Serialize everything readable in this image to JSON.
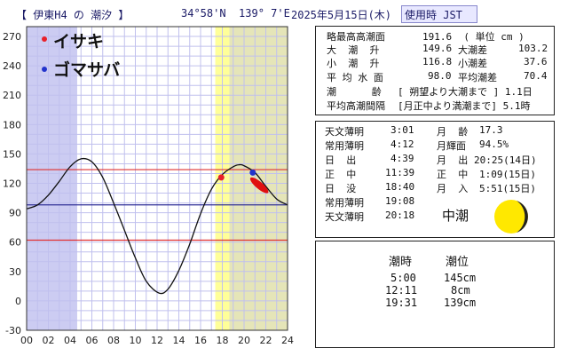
{
  "header": {
    "station": "【 伊東H4 の 潮汐 】",
    "coords": "34°58'N  139° 7'E",
    "date": "2025年5月15日(木)",
    "timezone": "使用時 JST"
  },
  "legend": [
    {
      "label": "イサキ",
      "color": "#e8202a"
    },
    {
      "label": "ゴマサバ",
      "color": "#2233cc"
    }
  ],
  "info": [
    {
      "label": "略最高高潮面",
      "value": "191.6  ( 単位 cm )"
    },
    {
      "label": "大  潮  升",
      "value": "149.6",
      "label2": "大潮差",
      "value2": "103.2"
    },
    {
      "label": "小  潮  升",
      "value": "116.8",
      "label2": "小潮差",
      "value2": "37.6"
    },
    {
      "label": "平 均 水 面",
      "value": "98.0",
      "label2": "平均潮差",
      "value2": "70.4"
    },
    {
      "label": "潮      齢",
      "value": "[ 朔望より大潮まで ] 1.1日"
    },
    {
      "label": "平均高潮間隔",
      "value": "[月正中より満潮まで] 5.1時"
    }
  ],
  "astro": {
    "left": [
      {
        "label": "天文薄明",
        "value": "3:01"
      },
      {
        "label": "常用薄明",
        "value": "4:12"
      },
      {
        "label": "日  出",
        "value": "4:39"
      },
      {
        "label": "正  中",
        "value": "11:39"
      },
      {
        "label": "日  没",
        "value": "18:40"
      },
      {
        "label": "常用薄明",
        "value": "19:08"
      },
      {
        "label": "天文薄明",
        "value": "20:18"
      }
    ],
    "right": [
      {
        "label": "月  齢",
        "value": "17.3"
      },
      {
        "label": "月輝面",
        "value": "94.5%"
      },
      {
        "label": "月  出",
        "value": "20:25(14日)"
      },
      {
        "label": "正  中",
        "value": "1:09(15日)"
      },
      {
        "label": "月  入",
        "value": "5:51(15日)"
      }
    ],
    "tide_type": "中潮"
  },
  "tide_table": {
    "headers": [
      "潮時",
      "潮位"
    ],
    "rows": [
      {
        "time": "5:00",
        "level": "145cm"
      },
      {
        "time": "12:11",
        "level": "8cm"
      },
      {
        "time": "19:31",
        "level": "139cm"
      }
    ]
  },
  "chart_data": {
    "type": "line",
    "xlabel": "",
    "ylabel": "",
    "xlim": [
      0,
      24
    ],
    "ylim": [
      -30,
      280
    ],
    "x_ticks": [
      "00",
      "02",
      "04",
      "06",
      "08",
      "10",
      "12",
      "14",
      "16",
      "18",
      "20",
      "22",
      "24"
    ],
    "y_ticks": [
      270,
      240,
      210,
      180,
      150,
      120,
      90,
      60,
      30,
      0,
      -30
    ],
    "tide_curve": {
      "x": [
        0,
        1,
        2,
        3,
        4,
        5,
        6,
        7,
        8,
        9,
        10,
        11,
        12.18,
        13,
        14,
        15,
        16,
        17,
        18,
        19,
        19.52,
        20,
        21,
        22,
        23,
        24
      ],
      "y": [
        94,
        98,
        108,
        122,
        137,
        145,
        142,
        126,
        100,
        72,
        44,
        20,
        8,
        12,
        31,
        58,
        89,
        114,
        129,
        137,
        139,
        138,
        131,
        117,
        104,
        98
      ]
    },
    "reference_lines": [
      {
        "y": 134,
        "color": "#e03030"
      },
      {
        "y": 98,
        "color": "#333399"
      },
      {
        "y": 62,
        "color": "#e03030"
      }
    ],
    "shaded_regions": [
      {
        "x0": 0,
        "x1": 4.65,
        "color": "#ccccf2"
      },
      {
        "x0": 17.35,
        "x1": 18.65,
        "color": "#ffff99"
      },
      {
        "x0": 18.65,
        "x1": 24,
        "color": "#e5e5b8"
      }
    ],
    "markers": [
      {
        "x": 17.9,
        "y": 126,
        "color": "#e8202a"
      },
      {
        "x": 20.8,
        "y": 131,
        "color": "#2233cc"
      }
    ],
    "fish_mark": {
      "x": 21.4,
      "y": 118,
      "color": "#e01010"
    }
  }
}
